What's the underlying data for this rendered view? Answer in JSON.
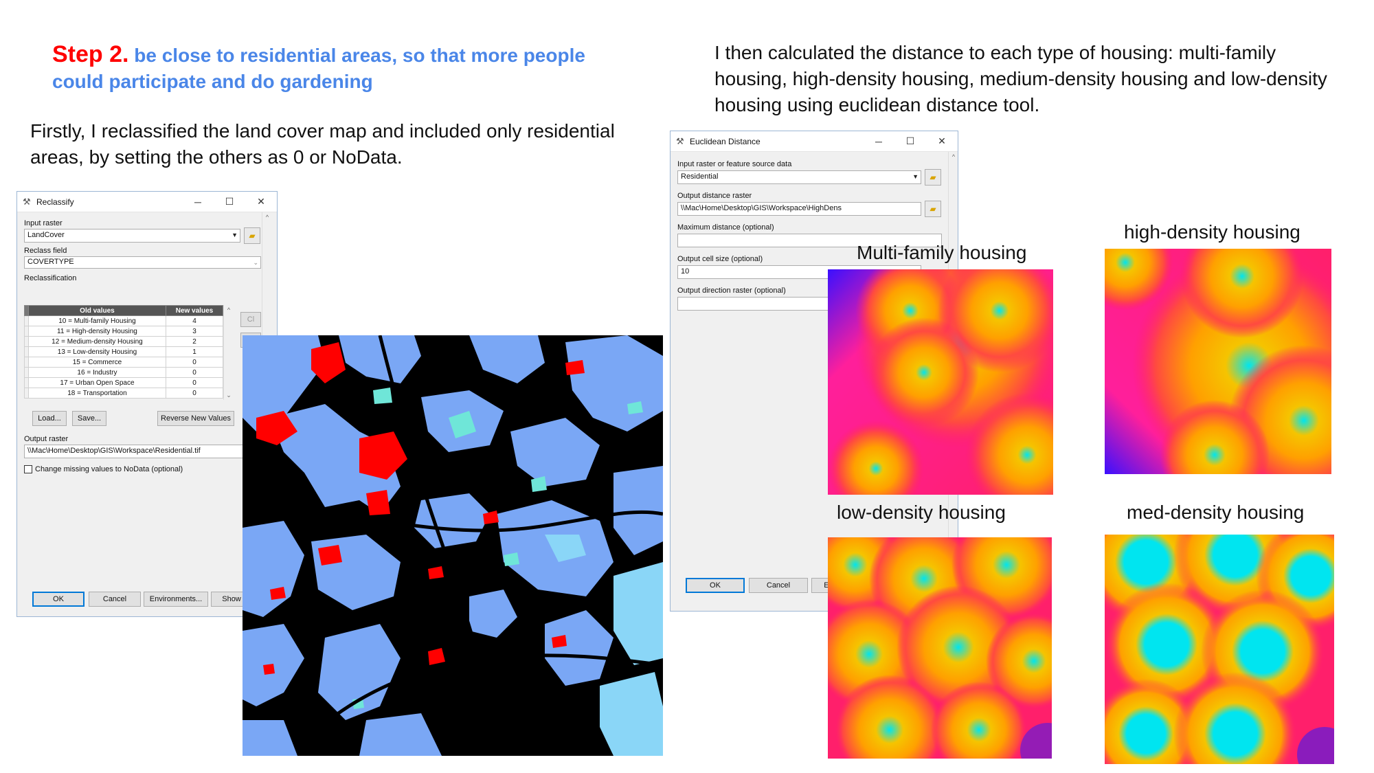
{
  "heading": {
    "step_num": "Step 2.",
    "step_goal_line1": "be close to residential areas, so that more people",
    "step_goal_line2": "could participate and do gardening"
  },
  "text_firstly": "Firstly, I reclassified the land cover map and included only residential areas, by setting the others as 0 or NoData.",
  "text_then": "I then calculated the distance to each type of housing: multi-family housing, high-density housing, medium-density housing and low-density housing using euclidean distance tool.",
  "reclassify": {
    "title": "Reclassify",
    "input_raster_label": "Input raster",
    "input_raster_value": "LandCover",
    "reclass_field_label": "Reclass field",
    "reclass_field_value": "COVERTYPE",
    "reclassification_label": "Reclassification",
    "columns": [
      "Old values",
      "New values"
    ],
    "rows": [
      {
        "old": "10 = Multi-family Housing",
        "new": "4"
      },
      {
        "old": "11 = High-density Housing",
        "new": "3"
      },
      {
        "old": "12 = Medium-density Housing",
        "new": "2"
      },
      {
        "old": "13 = Low-density Housing",
        "new": "1"
      },
      {
        "old": "15 = Commerce",
        "new": "0"
      },
      {
        "old": "16 = Industry",
        "new": "0"
      },
      {
        "old": "17 = Urban Open Space",
        "new": "0"
      },
      {
        "old": "18 = Transportation",
        "new": "0"
      }
    ],
    "side_btn_1": "Cl",
    "side_btn_2": "U",
    "load_label": "Load...",
    "save_label": "Save...",
    "reverse_label": "Reverse New Values",
    "output_raster_label": "Output raster",
    "output_raster_value": "\\\\Mac\\Home\\Desktop\\GIS\\Workspace\\Residential.tif",
    "missing_checkbox_label": "Change missing values to NoData (optional)",
    "ok_label": "OK",
    "cancel_label": "Cancel",
    "environments_label": "Environments...",
    "show_label": "Show"
  },
  "euclid": {
    "title": "Euclidean Distance",
    "input_label": "Input raster or feature source data",
    "input_value": "Residential",
    "output_label": "Output distance raster",
    "output_value": "\\\\Mac\\Home\\Desktop\\GIS\\Workspace\\HighDens",
    "maxdist_label": "Maximum distance (optional)",
    "maxdist_value": "",
    "cellsize_label": "Output cell size (optional)",
    "cellsize_value": "10",
    "direction_label": "Output direction raster (optional)",
    "direction_value": "",
    "ok_label": "OK",
    "cancel_label": "Cancel",
    "env_label": "En"
  },
  "maps": {
    "multi_family": "Multi-family housing",
    "high_density": "high-density housing",
    "low_density": "low-density housing",
    "med_density": "med-density housing"
  },
  "colors": {
    "step_red": "#ff0000",
    "step_blue": "#4a86e8",
    "landcover_bg": "#000000",
    "landcover_light_blue": "#7aa7f5",
    "landcover_red": "#ff0000",
    "landcover_cyan": "#6fe6d8",
    "dist_near": "#00e5f0",
    "dist_mid": "#ffb400",
    "dist_far": "#ff1f6b",
    "dist_farthest": "#2a1aff"
  }
}
